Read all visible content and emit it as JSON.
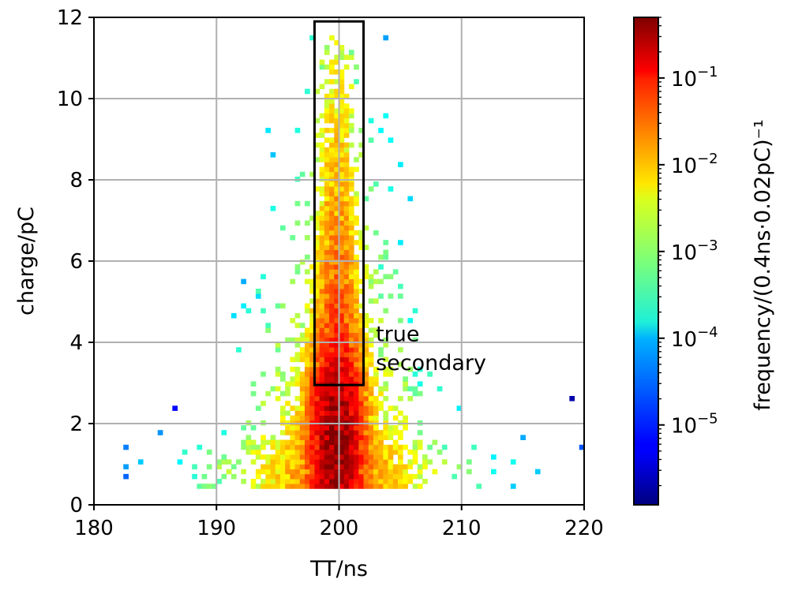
{
  "chart_data": {
    "type": "heatmap",
    "xlabel": "TT/ns",
    "ylabel": "charge/pC",
    "xlim": [
      180,
      220
    ],
    "ylim": [
      0,
      12
    ],
    "xticks": [
      "180",
      "190",
      "200",
      "210",
      "220"
    ],
    "yticks": [
      "0",
      "2",
      "4",
      "6",
      "8",
      "10",
      "12"
    ],
    "grid": true,
    "colorscale": "jet",
    "colorbar": {
      "label": "frequency/(0.4ns·0.02pC)⁻¹",
      "scale": "log",
      "range": [
        1.2e-06,
        0.5
      ],
      "ticks": [
        {
          "base": "10",
          "exp": "−1",
          "value": 0.1
        },
        {
          "base": "10",
          "exp": "−2",
          "value": 0.01
        },
        {
          "base": "10",
          "exp": "−3",
          "value": 0.001
        },
        {
          "base": "10",
          "exp": "−4",
          "value": 0.0001
        },
        {
          "base": "10",
          "exp": "−5",
          "value": 1e-05
        }
      ]
    },
    "distribution": {
      "peak_tt_ns": 199.8,
      "peak_charge_pC": 1.8,
      "peak_frequency": 0.3,
      "core_width_ns": 1.0,
      "main_charge_range_pC": [
        0.4,
        11.5
      ],
      "background_tt_range_ns": [
        180,
        220
      ]
    },
    "annotations": [
      {
        "type": "box",
        "x_range": [
          198,
          202
        ],
        "y_range": [
          2.95,
          11.9
        ],
        "text_lines": [
          "true",
          "secondary"
        ],
        "text_x": 203,
        "text_y": [
          4.2,
          3.5
        ]
      }
    ]
  },
  "colors": {
    "grid": "#b0b0b0",
    "box": "#000000",
    "frame": "#000000"
  }
}
